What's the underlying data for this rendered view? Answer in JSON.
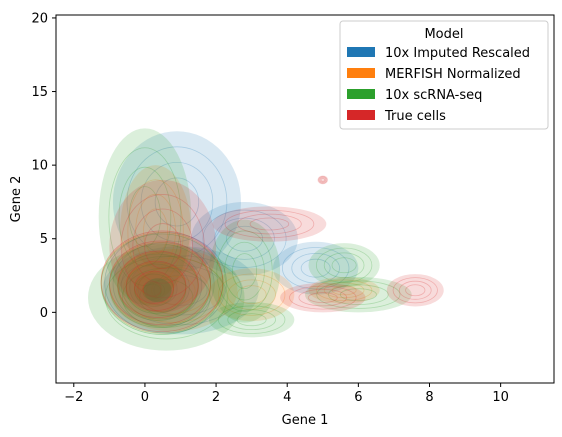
{
  "chart_data": {
    "type": "kde-density",
    "xlabel": "Gene 1",
    "ylabel": "Gene 2",
    "xlim": [
      -2.5,
      11.5
    ],
    "ylim": [
      -4.8,
      20.2
    ],
    "xticks": [
      -2,
      0,
      2,
      4,
      6,
      8,
      10
    ],
    "yticks": [
      0,
      5,
      10,
      15,
      20
    ],
    "xtick_labels": [
      "−2",
      "0",
      "2",
      "4",
      "6",
      "8",
      "10"
    ],
    "ytick_labels": [
      "0",
      "5",
      "10",
      "15",
      "20"
    ],
    "grid": false,
    "legend": {
      "title": "Model",
      "placement": "top-right",
      "entries": [
        "10x Imputed Rescaled",
        "MERFISH Normalized",
        "10x scRNA-seq",
        "True cells"
      ]
    },
    "series": [
      {
        "name": "10x Imputed Rescaled",
        "color": "#1f77b4",
        "center": [
          0.3,
          1.5
        ],
        "blobs": [
          {
            "cx": 0.9,
            "cy": 7.5,
            "rx": 1.8,
            "ry": 4.8
          },
          {
            "cx": 2.8,
            "cy": 5.0,
            "rx": 1.5,
            "ry": 2.5
          },
          {
            "cx": 4.8,
            "cy": 3.0,
            "rx": 1.2,
            "ry": 1.8
          },
          {
            "cx": 1.0,
            "cy": 1.5,
            "rx": 2.2,
            "ry": 3.0
          }
        ]
      },
      {
        "name": "MERFISH Normalized",
        "color": "#ff7f0e",
        "center": [
          0.2,
          1.5
        ],
        "blobs": [
          {
            "cx": 0.3,
            "cy": 5.5,
            "rx": 1.0,
            "ry": 4.5
          },
          {
            "cx": 0.8,
            "cy": 1.5,
            "rx": 1.8,
            "ry": 2.8
          },
          {
            "cx": 3.0,
            "cy": 1.2,
            "rx": 1.2,
            "ry": 1.8
          },
          {
            "cx": 5.6,
            "cy": 1.5,
            "rx": 1.0,
            "ry": 0.9
          }
        ]
      },
      {
        "name": "10x scRNA-seq",
        "color": "#2ca02c",
        "center": [
          0.2,
          1.4
        ],
        "blobs": [
          {
            "cx": 0.0,
            "cy": 6.5,
            "rx": 1.3,
            "ry": 6.0
          },
          {
            "cx": 0.6,
            "cy": 1.0,
            "rx": 2.2,
            "ry": 3.6
          },
          {
            "cx": 2.8,
            "cy": 2.8,
            "rx": 1.0,
            "ry": 3.5
          },
          {
            "cx": 5.6,
            "cy": 3.2,
            "rx": 1.0,
            "ry": 1.5
          },
          {
            "cx": 6.0,
            "cy": 1.2,
            "rx": 1.5,
            "ry": 1.2
          },
          {
            "cx": 3.0,
            "cy": -0.5,
            "rx": 1.2,
            "ry": 1.2
          }
        ]
      },
      {
        "name": "True cells",
        "color": "#d62728",
        "center": [
          0.2,
          1.6
        ],
        "blobs": [
          {
            "cx": 0.5,
            "cy": 4.5,
            "rx": 1.5,
            "ry": 4.5
          },
          {
            "cx": 3.5,
            "cy": 6.0,
            "rx": 1.6,
            "ry": 1.2
          },
          {
            "cx": 5.0,
            "cy": 1.0,
            "rx": 1.2,
            "ry": 1.0
          },
          {
            "cx": 7.6,
            "cy": 1.5,
            "rx": 0.8,
            "ry": 1.1
          },
          {
            "cx": 5.0,
            "cy": 9.0,
            "rx": 0.15,
            "ry": 0.3
          }
        ]
      }
    ]
  }
}
